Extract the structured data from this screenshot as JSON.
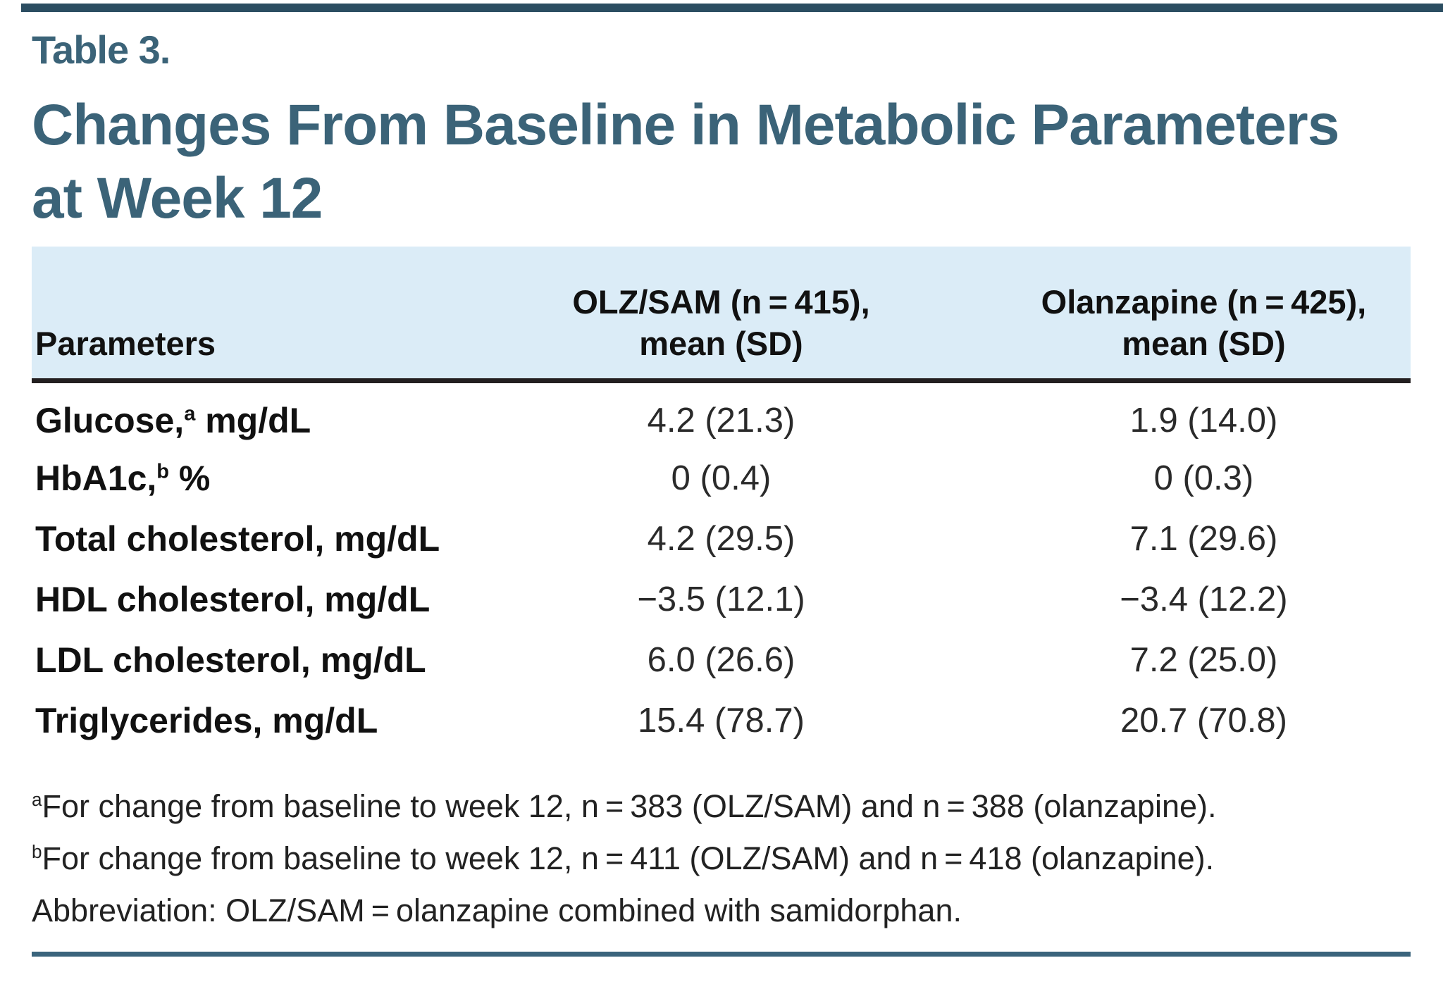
{
  "page": {
    "eyebrow": "Table 3.",
    "title_line1": "Changes From Baseline in Metabolic Parameters",
    "title_line2": "at Week 12",
    "accent_color": "#3b6378",
    "header_band_color": "#dbecf7",
    "rule_color": "#3a647c"
  },
  "table": {
    "col1_header": "Parameters",
    "col2_header_line1": "OLZ/SAM (n = 415),",
    "col2_header_line2": "mean (SD)",
    "col3_header_line1": "Olanzapine (n = 425),",
    "col3_header_line2": "mean (SD)",
    "rows": [
      {
        "param": "Glucose,",
        "sup": "a",
        "unit": " mg/dL",
        "olzsam": "4.2 (21.3)",
        "olanzapine": "1.9 (14.0)"
      },
      {
        "param": "HbA1c,",
        "sup": "b",
        "unit": " %",
        "olzsam": "0 (0.4)",
        "olanzapine": "0 (0.3)"
      },
      {
        "param": "Total cholesterol, mg/dL",
        "sup": "",
        "unit": "",
        "olzsam": "4.2 (29.5)",
        "olanzapine": "7.1 (29.6)"
      },
      {
        "param": "HDL cholesterol, mg/dL",
        "sup": "",
        "unit": "",
        "olzsam": "−3.5 (12.1)",
        "olanzapine": "−3.4 (12.2)"
      },
      {
        "param": "LDL cholesterol, mg/dL",
        "sup": "",
        "unit": "",
        "olzsam": "6.0 (26.6)",
        "olanzapine": "7.2 (25.0)"
      },
      {
        "param": "Triglycerides, mg/dL",
        "sup": "",
        "unit": "",
        "olzsam": "15.4 (78.7)",
        "olanzapine": "20.7 (70.8)"
      }
    ]
  },
  "footnotes": [
    {
      "sup": "a",
      "text": "For change from baseline to week 12, n = 383 (OLZ/SAM) and n = 388 (olanzapine)."
    },
    {
      "sup": "b",
      "text": "For change from baseline to week 12, n = 411 (OLZ/SAM) and n = 418 (olanzapine)."
    },
    {
      "sup": "",
      "text": "Abbreviation: OLZ/SAM = olanzapine combined with samidorphan."
    }
  ]
}
